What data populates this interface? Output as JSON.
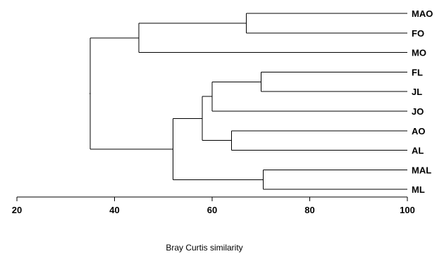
{
  "chart_data": {
    "type": "dendrogram",
    "xlabel": "Bray Curtis similarity",
    "xlim": [
      20,
      100
    ],
    "ticks": [
      20,
      40,
      60,
      80,
      100
    ],
    "leaves": [
      "MAO",
      "FO",
      "MO",
      "FL",
      "JL",
      "JO",
      "AO",
      "AL",
      "MAL",
      "ML"
    ],
    "merges": [
      {
        "id": "c1",
        "left": "MAO",
        "right": "FO",
        "similarity": 67
      },
      {
        "id": "c2",
        "left": "c1",
        "right": "MO",
        "similarity": 45
      },
      {
        "id": "c3",
        "left": "FL",
        "right": "JL",
        "similarity": 70
      },
      {
        "id": "c4",
        "left": "c3",
        "right": "JO",
        "similarity": 60
      },
      {
        "id": "c5",
        "left": "AO",
        "right": "AL",
        "similarity": 64
      },
      {
        "id": "c6",
        "left": "c4",
        "right": "c5",
        "similarity": 58
      },
      {
        "id": "c7",
        "left": "MAL",
        "right": "ML",
        "similarity": 70.5
      },
      {
        "id": "c8",
        "left": "c6",
        "right": "c7",
        "similarity": 52
      },
      {
        "id": "c9",
        "left": "c2",
        "right": "c8",
        "similarity": 35
      }
    ]
  }
}
